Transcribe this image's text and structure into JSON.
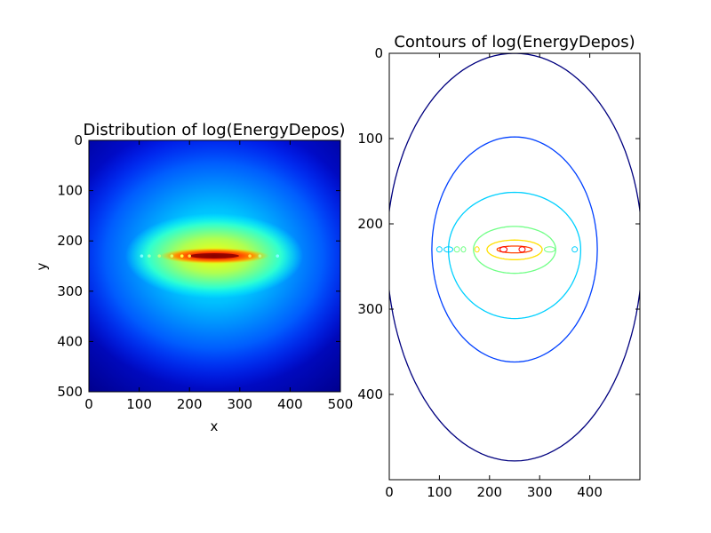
{
  "chart_data": [
    {
      "type": "heatmap",
      "title": "Distribution of log(EnergyDepos)",
      "xlabel": "x",
      "ylabel": "y",
      "xlim": [
        0,
        500
      ],
      "ylim": [
        500,
        0
      ],
      "y_inverted": true,
      "xticks": [
        0,
        100,
        200,
        300,
        400,
        500
      ],
      "yticks": [
        0,
        100,
        200,
        300,
        400,
        500
      ],
      "colormap": "jet",
      "peak_center": [
        250,
        230
      ],
      "grid": false,
      "colors": {
        "low": "#00007f",
        "mid": "#00ffff",
        "high": "#ff0000"
      }
    },
    {
      "type": "contour",
      "title": "Contours of log(EnergyDepos)",
      "xlabel": "",
      "ylabel": "",
      "xlim": [
        0,
        500
      ],
      "ylim": [
        500,
        0
      ],
      "y_inverted": true,
      "xticks": [
        0,
        100,
        200,
        300,
        400
      ],
      "yticks": [
        0,
        100,
        200,
        300,
        400
      ],
      "center": [
        250,
        230
      ],
      "grid": false,
      "levels": [
        {
          "color": "#00007f",
          "x_min": -5,
          "x_max": 505,
          "y_min": 0,
          "y_max": 478
        },
        {
          "color": "#0040ff",
          "x_min": 85,
          "x_max": 415,
          "y_min": 98,
          "y_max": 362
        },
        {
          "color": "#00d0ff",
          "x_min": 118,
          "x_max": 382,
          "y_min": 163,
          "y_max": 311
        },
        {
          "color": "#70ff86",
          "x_min": 168,
          "x_max": 332,
          "y_min": 203,
          "y_max": 258
        },
        {
          "color": "#ffe000",
          "x_min": 195,
          "x_max": 305,
          "y_min": 219,
          "y_max": 242
        },
        {
          "color": "#ff4000",
          "x_min": 215,
          "x_max": 285,
          "y_min": 226,
          "y_max": 234
        }
      ]
    }
  ]
}
